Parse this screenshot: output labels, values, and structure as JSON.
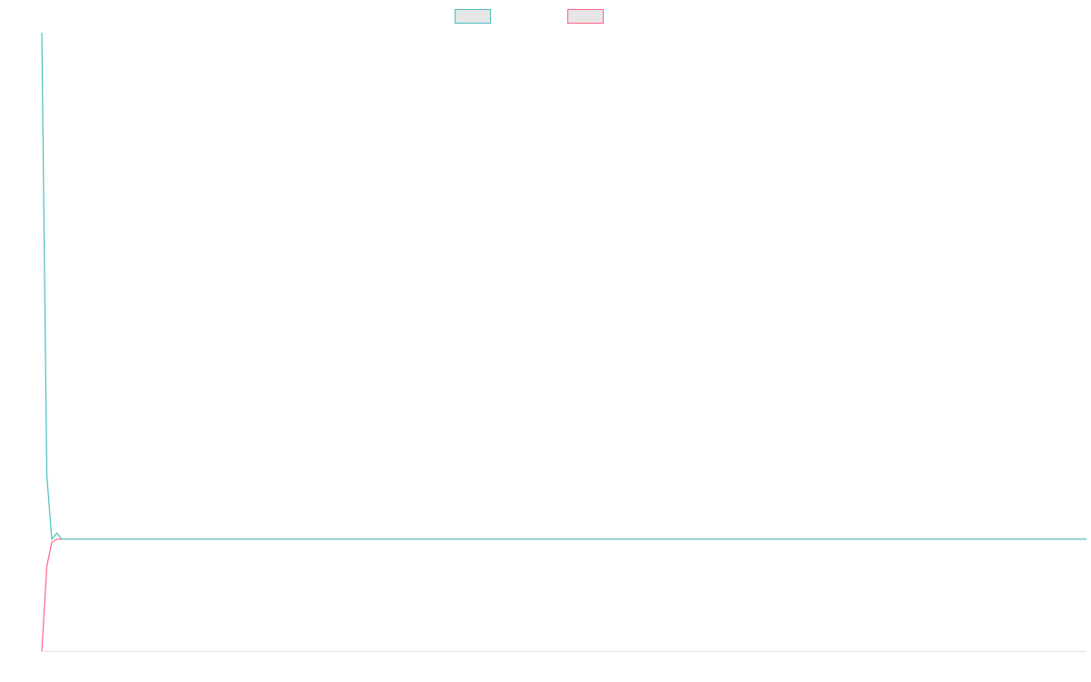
{
  "chart_data": {
    "type": "line",
    "x": [
      0,
      1,
      2,
      3,
      4,
      209
    ],
    "xlim": [
      0,
      209
    ],
    "ylim": [
      0,
      100
    ],
    "series": [
      {
        "color": "#4bc0c0",
        "values": [
          100,
          28.4,
          18.1,
          19.1,
          18.1,
          18.1
        ]
      },
      {
        "color": "#ff6384",
        "values": [
          0,
          13.7,
          17.6,
          18.1,
          18.1,
          18.1
        ]
      }
    ]
  }
}
